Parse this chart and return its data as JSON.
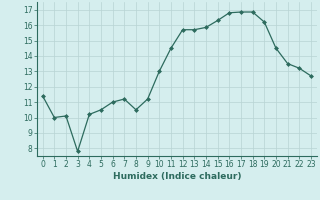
{
  "x": [
    0,
    1,
    2,
    3,
    4,
    5,
    6,
    7,
    8,
    9,
    10,
    11,
    12,
    13,
    14,
    15,
    16,
    17,
    18,
    19,
    20,
    21,
    22,
    23
  ],
  "y": [
    11.4,
    10.0,
    10.1,
    7.8,
    10.2,
    10.5,
    11.0,
    11.2,
    10.5,
    11.2,
    13.0,
    14.5,
    15.7,
    15.7,
    15.85,
    16.3,
    16.8,
    16.85,
    16.85,
    16.2,
    14.5,
    13.5,
    13.2,
    12.7
  ],
  "line_color": "#2d6b5e",
  "marker_color": "#2d6b5e",
  "bg_color": "#d5eeee",
  "grid_color": "#b8d4d4",
  "xlabel": "Humidex (Indice chaleur)",
  "xlim": [
    -0.5,
    23.5
  ],
  "ylim": [
    7.5,
    17.5
  ],
  "yticks": [
    8,
    9,
    10,
    11,
    12,
    13,
    14,
    15,
    16,
    17
  ],
  "xticks": [
    0,
    1,
    2,
    3,
    4,
    5,
    6,
    7,
    8,
    9,
    10,
    11,
    12,
    13,
    14,
    15,
    16,
    17,
    18,
    19,
    20,
    21,
    22,
    23
  ],
  "axis_fontsize": 5.5,
  "label_fontsize": 6.5
}
